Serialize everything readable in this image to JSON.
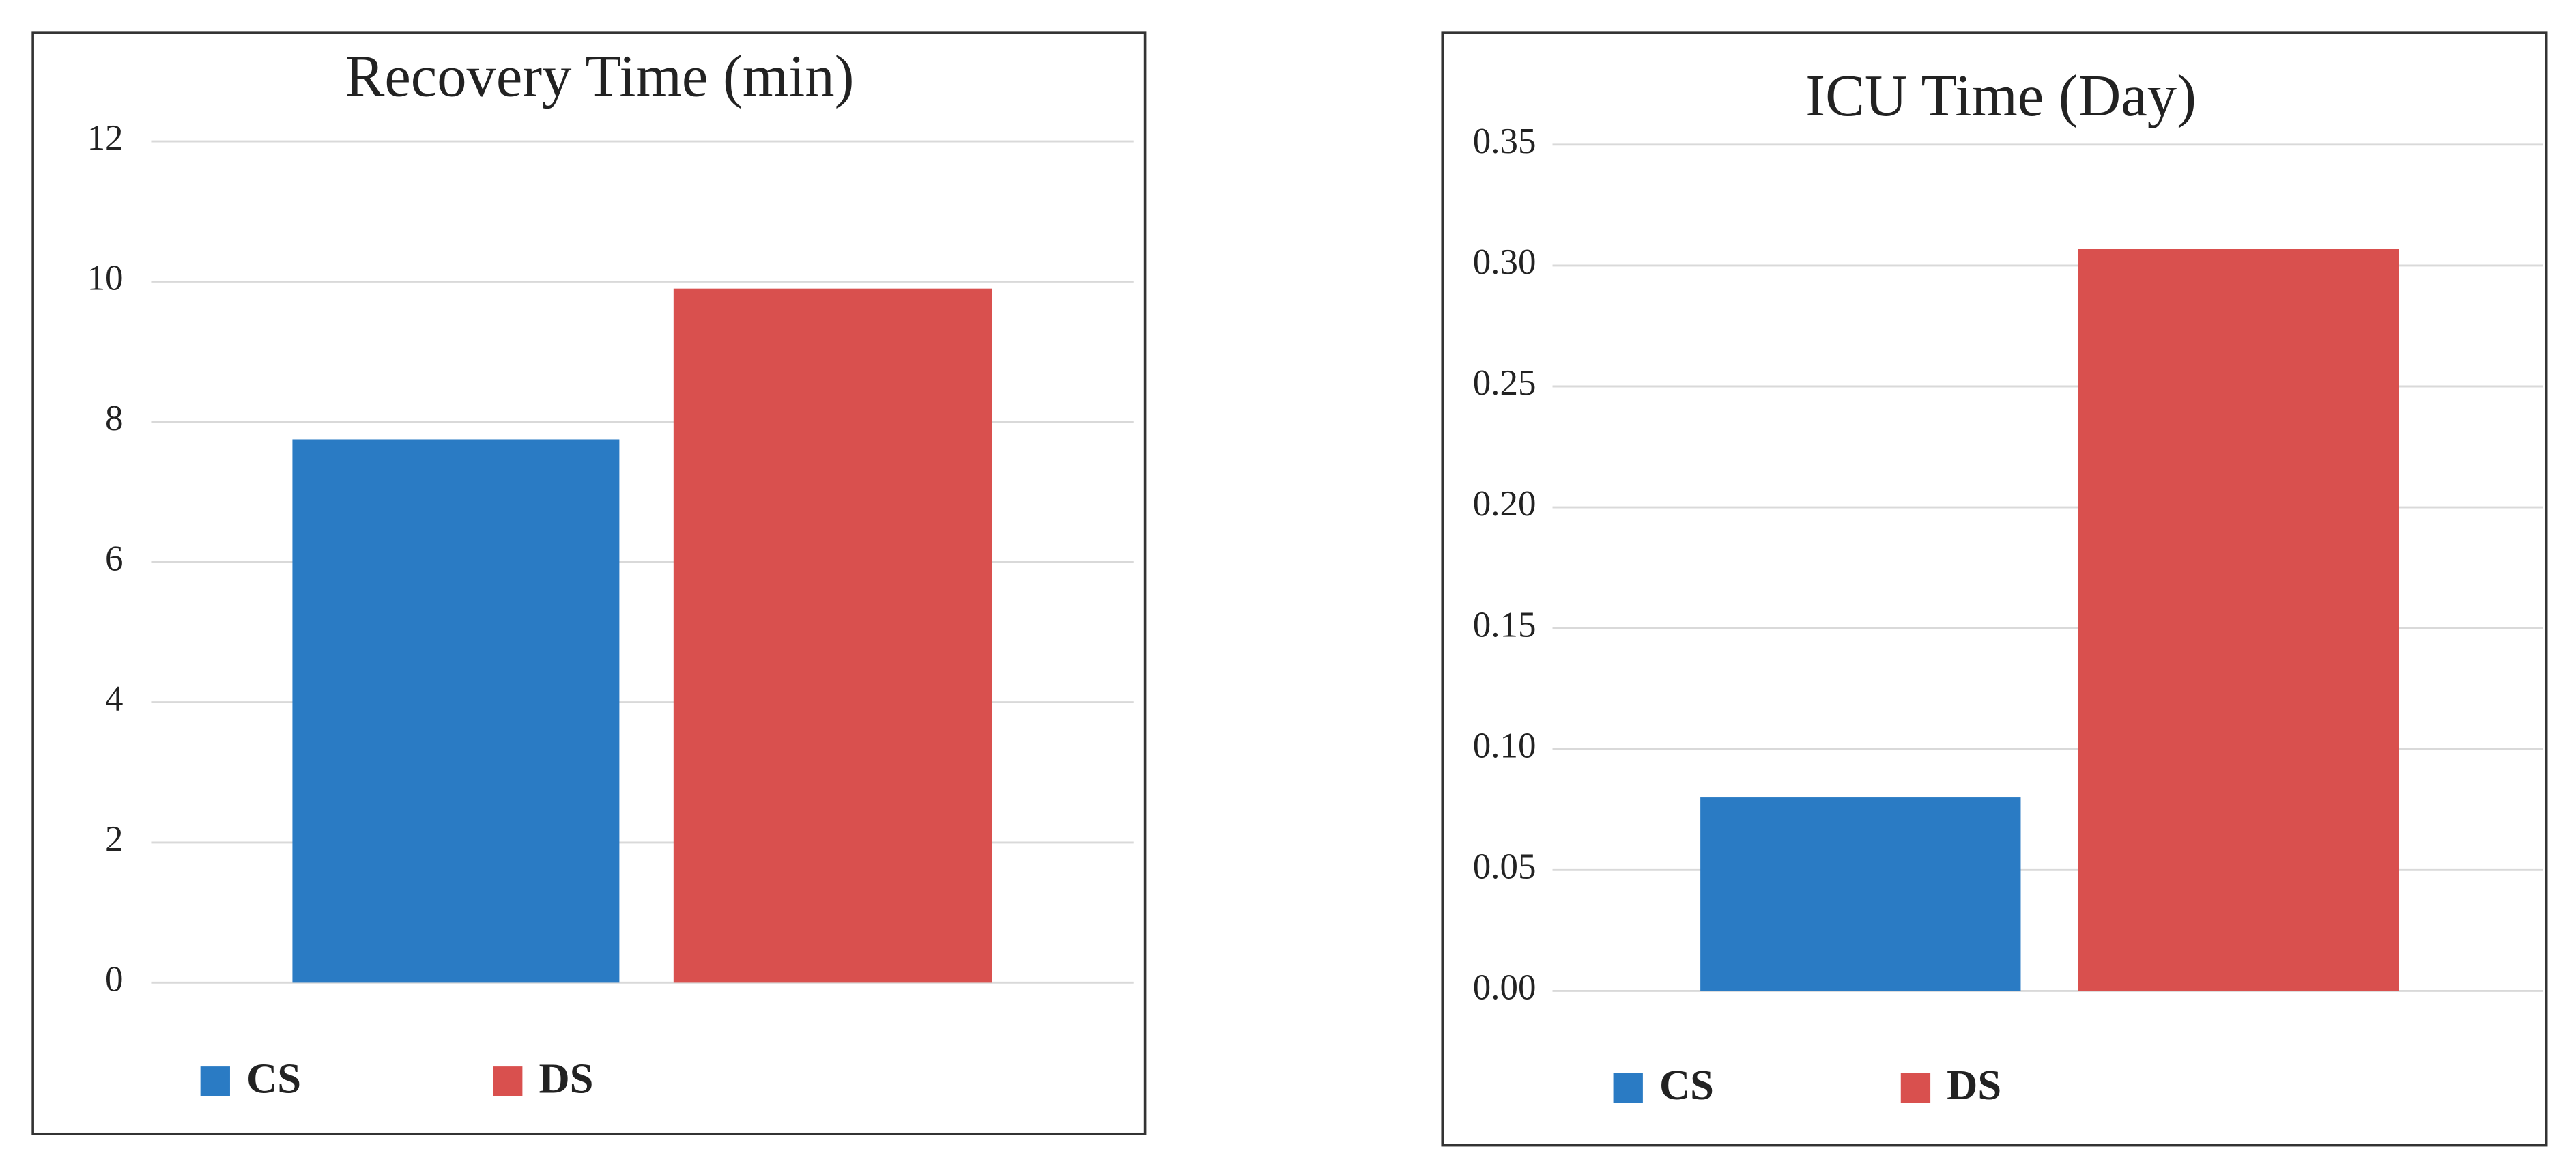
{
  "chart_data": [
    {
      "type": "bar",
      "title": "Recovery Time (min)",
      "series": [
        {
          "name": "CS",
          "color": "#2a7bc4",
          "values": [
            7.75
          ]
        },
        {
          "name": "DS",
          "color": "#d9504e",
          "values": [
            9.9
          ]
        }
      ],
      "ylim": [
        0,
        12
      ],
      "yticks": [
        0,
        2,
        4,
        6,
        8,
        10,
        12
      ],
      "grid": true,
      "legend": "bottom"
    },
    {
      "type": "bar",
      "title": "ICU Time (Day)",
      "series": [
        {
          "name": "CS",
          "color": "#2a7bc4",
          "values": [
            0.08
          ]
        },
        {
          "name": "DS",
          "color": "#d9504e",
          "values": [
            0.307
          ]
        }
      ],
      "ylim": [
        0,
        0.35
      ],
      "yticks": [
        {
          "value": 0,
          "label": "0.00"
        },
        0.05,
        {
          "value": 0.1,
          "label": "0.10"
        },
        0.15,
        {
          "value": 0.2,
          "label": "0.20"
        },
        0.25,
        {
          "value": 0.3,
          "label": "0.30"
        },
        0.35
      ],
      "grid": true,
      "legend": "bottom"
    }
  ]
}
